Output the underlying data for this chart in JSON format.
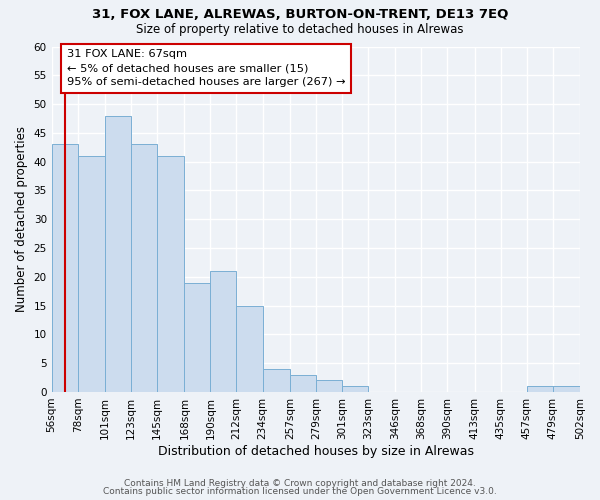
{
  "title1": "31, FOX LANE, ALREWAS, BURTON-ON-TRENT, DE13 7EQ",
  "title2": "Size of property relative to detached houses in Alrewas",
  "xlabel": "Distribution of detached houses by size in Alrewas",
  "ylabel": "Number of detached properties",
  "bin_edges": [
    56,
    78,
    101,
    123,
    145,
    168,
    190,
    212,
    234,
    257,
    279,
    301,
    323,
    346,
    368,
    390,
    413,
    435,
    457,
    479,
    502
  ],
  "bin_labels": [
    "56sqm",
    "78sqm",
    "101sqm",
    "123sqm",
    "145sqm",
    "168sqm",
    "190sqm",
    "212sqm",
    "234sqm",
    "257sqm",
    "279sqm",
    "301sqm",
    "323sqm",
    "346sqm",
    "368sqm",
    "390sqm",
    "413sqm",
    "435sqm",
    "457sqm",
    "479sqm",
    "502sqm"
  ],
  "counts": [
    43,
    41,
    48,
    43,
    41,
    19,
    21,
    15,
    4,
    3,
    2,
    1,
    0,
    0,
    0,
    0,
    0,
    0,
    1,
    1,
    0
  ],
  "bar_color": "#ccdcee",
  "bar_edge_color": "#7aafd4",
  "property_line_color": "#cc0000",
  "annotation_text": "31 FOX LANE: 67sqm\n← 5% of detached houses are smaller (15)\n95% of semi-detached houses are larger (267) →",
  "annotation_box_color": "#cc0000",
  "ylim": [
    0,
    60
  ],
  "yticks": [
    0,
    5,
    10,
    15,
    20,
    25,
    30,
    35,
    40,
    45,
    50,
    55,
    60
  ],
  "footer1": "Contains HM Land Registry data © Crown copyright and database right 2024.",
  "footer2": "Contains public sector information licensed under the Open Government Licence v3.0.",
  "bg_color": "#eef2f7",
  "grid_color": "#ffffff",
  "title1_fontsize": 9.5,
  "title2_fontsize": 8.5,
  "xlabel_fontsize": 9,
  "ylabel_fontsize": 8.5,
  "tick_fontsize": 7.5,
  "footer_fontsize": 6.5
}
